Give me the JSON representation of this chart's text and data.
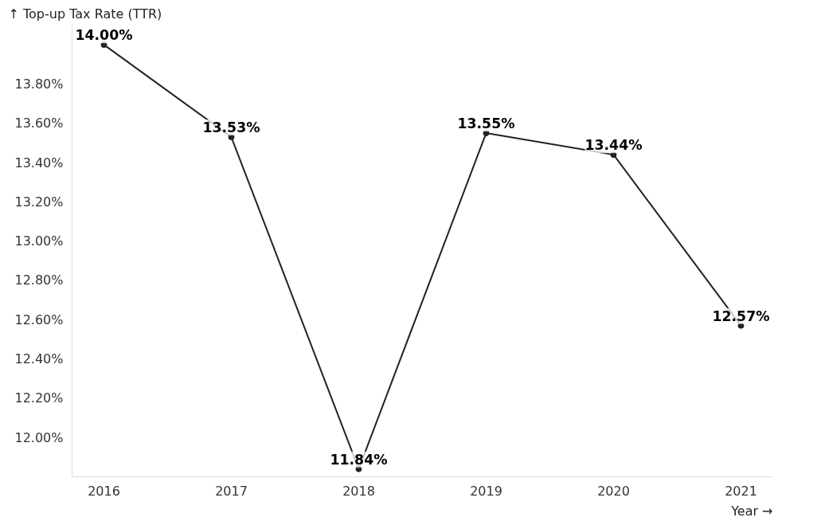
{
  "chart_data": {
    "type": "line",
    "xlabel": "Year →",
    "ylabel": "↑ Top-up Tax Rate (TTR)",
    "x": [
      2016,
      2017,
      2018,
      2019,
      2020,
      2021
    ],
    "series": [
      {
        "color": "#222222",
        "values": [
          14.0,
          13.53,
          11.84,
          13.55,
          13.44,
          12.57
        ],
        "value_labels": [
          "14.00%",
          "13.53%",
          "11.84%",
          "13.55%",
          "13.44%",
          "12.57%"
        ]
      }
    ],
    "xlim": [
      2015.75,
      2021.25
    ],
    "xticks": [
      2016,
      2017,
      2018,
      2019,
      2020,
      2021
    ],
    "ylim": [
      11.8,
      14.1
    ],
    "yticks": [
      {
        "value": 12.0,
        "label": "12.00%"
      },
      {
        "value": 12.2,
        "label": "12.20%"
      },
      {
        "value": 12.4,
        "label": "12.40%"
      },
      {
        "value": 12.6,
        "label": "12.60%"
      },
      {
        "value": 12.8,
        "label": "12.80%"
      },
      {
        "value": 13.0,
        "label": "13.00%"
      },
      {
        "value": 13.2,
        "label": "13.20%"
      },
      {
        "value": 13.4,
        "label": "13.40%"
      },
      {
        "value": 13.6,
        "label": "13.60%"
      },
      {
        "value": 13.8,
        "label": "13.80%"
      }
    ],
    "grid": false,
    "marker": "circle",
    "line_style": "solid"
  }
}
